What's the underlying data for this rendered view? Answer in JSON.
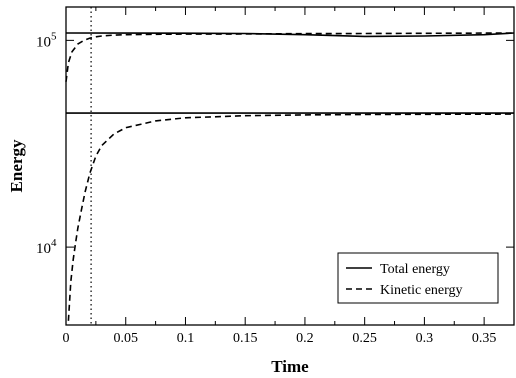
{
  "chart_data": {
    "type": "line",
    "title": "",
    "xlabel": "Time",
    "ylabel": "Energy",
    "xlim": [
      0,
      0.375
    ],
    "ylim": [
      4200,
      145000
    ],
    "yscale": "log",
    "grid": false,
    "legend_position": "bottom-right",
    "xticks": [
      0,
      0.05,
      0.1,
      0.15,
      0.2,
      0.25,
      0.3,
      0.35
    ],
    "xtick_labels": [
      "0",
      "0.05",
      "0.1",
      "0.15",
      "0.2",
      "0.25",
      "0.3",
      "0.35"
    ],
    "yticks": [
      {
        "value": 10000,
        "base": "10",
        "exp": "4"
      },
      {
        "value": 100000,
        "base": "10",
        "exp": "5"
      }
    ],
    "vline": {
      "x": 0.021,
      "style": "dotted"
    },
    "series": [
      {
        "name": "Total energy",
        "style": "solid",
        "x": [
          0,
          0.05,
          0.1,
          0.15,
          0.2,
          0.25,
          0.3,
          0.35,
          0.375
        ],
        "y": [
          108500,
          108400,
          108300,
          108000,
          106500,
          104500,
          105000,
          106500,
          108500
        ]
      },
      {
        "name": "Kinetic energy",
        "style": "dashed",
        "x": [
          0,
          0.002,
          0.005,
          0.01,
          0.015,
          0.02,
          0.025,
          0.03,
          0.04,
          0.05,
          0.075,
          0.1,
          0.15,
          0.2,
          0.25,
          0.3,
          0.35,
          0.375
        ],
        "y": [
          63000,
          78000,
          88000,
          96000,
          100000,
          102500,
          104000,
          105000,
          106000,
          106500,
          107000,
          107200,
          107400,
          107800,
          108000,
          108200,
          108400,
          108500
        ]
      },
      {
        "name": "Total energy",
        "style": "solid",
        "x": [
          0,
          0.375
        ],
        "y": [
          44500,
          44500
        ]
      },
      {
        "name": "Kinetic energy",
        "style": "dashed",
        "x": [
          0.002,
          0.004,
          0.006,
          0.008,
          0.01,
          0.013,
          0.016,
          0.02,
          0.025,
          0.03,
          0.04,
          0.05,
          0.075,
          0.1,
          0.15,
          0.2,
          0.25,
          0.3,
          0.375
        ],
        "y": [
          4400,
          6800,
          8700,
          10500,
          12400,
          15200,
          18500,
          22800,
          27600,
          31000,
          35200,
          37800,
          40800,
          42200,
          43200,
          43600,
          43800,
          43900,
          44000
        ]
      }
    ],
    "legend": [
      {
        "label": "Total energy",
        "style": "solid"
      },
      {
        "label": "Kinetic energy",
        "style": "dashed"
      }
    ]
  }
}
